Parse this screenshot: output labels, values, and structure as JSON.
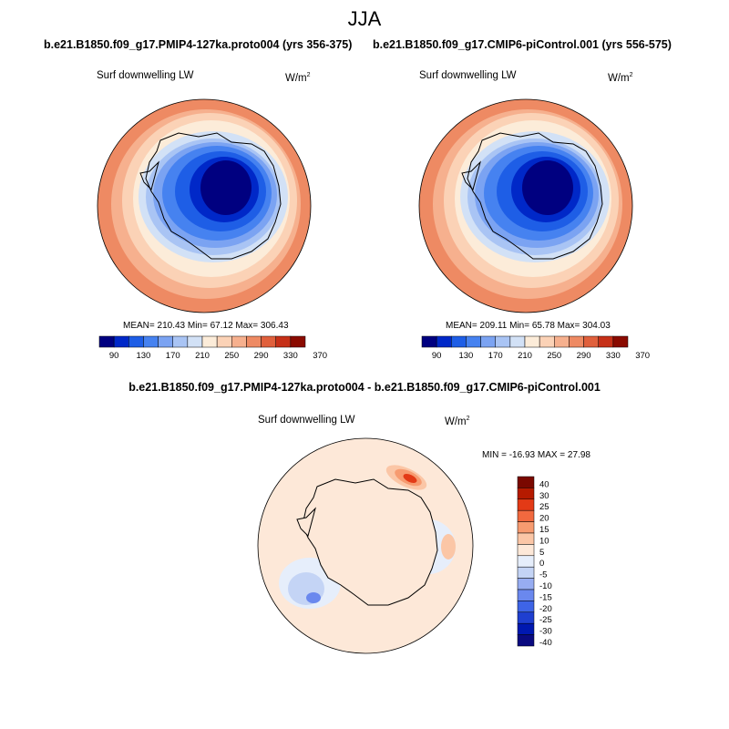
{
  "title": "JJA",
  "colors": {
    "seq": [
      "#000080",
      "#0028c8",
      "#1e5ee6",
      "#4682f0",
      "#7ba3f2",
      "#a9c4f4",
      "#d2e1f6",
      "#fcecd9",
      "#fbd2b6",
      "#f6b08e",
      "#ee8a63",
      "#e0603c",
      "#c63018",
      "#8a0a00"
    ],
    "div": [
      "#0a0a80",
      "#0018b0",
      "#1f3fd0",
      "#3e64e6",
      "#6a88ee",
      "#97adf2",
      "#c4d4f5",
      "#e6eefb",
      "#fde8d8",
      "#fbc6a6",
      "#f79b70",
      "#f1693f",
      "#e33a16",
      "#b51a00",
      "#7a0800"
    ],
    "coast": "#000000"
  },
  "chart_data": [
    {
      "type": "heatmap",
      "title": "b.e21.B1850.f09_g17.PMIP4-127ka.proto004 (yrs 356-375)",
      "variable": "Surf downwelling LW",
      "units": "W/m",
      "units_exp": "2",
      "stats": {
        "mean": "210.43",
        "min": "67.12",
        "max": "306.43"
      },
      "stats_text": "MEAN= 210.43  Min=  67.12  Max= 306.43",
      "colorbar_levels": [
        90,
        110,
        130,
        150,
        170,
        190,
        210,
        230,
        250,
        270,
        290,
        310,
        330,
        350,
        370
      ],
      "colorbar_tick_labels": [
        "90",
        "130",
        "170",
        "210",
        "250",
        "290",
        "330",
        "370"
      ],
      "projection": "south polar stereographic"
    },
    {
      "type": "heatmap",
      "title": "b.e21.B1850.f09_g17.CMIP6-piControl.001 (yrs 556-575)",
      "variable": "Surf downwelling LW",
      "units": "W/m",
      "units_exp": "2",
      "stats": {
        "mean": "209.11",
        "min": "65.78",
        "max": "304.03"
      },
      "stats_text": "MEAN= 209.11  Min=  65.78  Max= 304.03",
      "colorbar_levels": [
        90,
        110,
        130,
        150,
        170,
        190,
        210,
        230,
        250,
        270,
        290,
        310,
        330,
        350,
        370
      ],
      "colorbar_tick_labels": [
        "90",
        "130",
        "170",
        "210",
        "250",
        "290",
        "330",
        "370"
      ],
      "projection": "south polar stereographic"
    },
    {
      "type": "heatmap",
      "title": "b.e21.B1850.f09_g17.PMIP4-127ka.proto004 - b.e21.B1850.f09_g17.CMIP6-piControl.001",
      "variable": "Surf downwelling LW",
      "units": "W/m",
      "units_exp": "2",
      "stats": {
        "min": "-16.93",
        "max": "27.98"
      },
      "stats_text": "MIN = -16.93 MAX =  27.98",
      "colorbar_tick_labels": [
        "40",
        "30",
        "25",
        "20",
        "15",
        "10",
        "5",
        "0",
        "-5",
        "-10",
        "-15",
        "-20",
        "-25",
        "-30",
        "-40"
      ],
      "projection": "south polar stereographic"
    }
  ]
}
